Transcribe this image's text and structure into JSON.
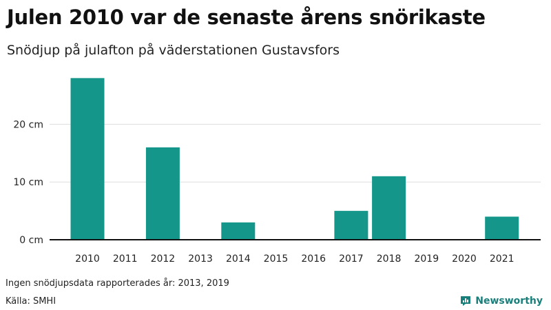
{
  "header": {
    "title": "Julen 2010 var de senaste årens snörikaste",
    "subtitle": "Snödjup på julafton på väderstationen Gustavsfors"
  },
  "footer": {
    "note": "Ingen snödjupsdata rapporterades år: 2013, 2019",
    "source": "Källa: SMHI",
    "brand": "Newsworthy",
    "brand_icon": "bar-chart-logo-icon"
  },
  "colors": {
    "bar": "#14978a",
    "brand": "#1a7f7a"
  },
  "chart_data": {
    "type": "bar",
    "title": "Julen 2010 var de senaste årens snörikaste",
    "subtitle": "Snödjup på julafton på väderstationen Gustavsfors",
    "categories": [
      "2010",
      "2011",
      "2012",
      "2013",
      "2014",
      "2015",
      "2016",
      "2017",
      "2018",
      "2019",
      "2020",
      "2021"
    ],
    "values": [
      28,
      0,
      16,
      null,
      3,
      0,
      0,
      5,
      11,
      null,
      0,
      4
    ],
    "unit": "cm",
    "ylim": [
      0,
      30
    ],
    "yticks": [
      0,
      10,
      20
    ],
    "ytick_labels": [
      "0 cm",
      "10 cm",
      "20 cm"
    ],
    "grid": true
  }
}
